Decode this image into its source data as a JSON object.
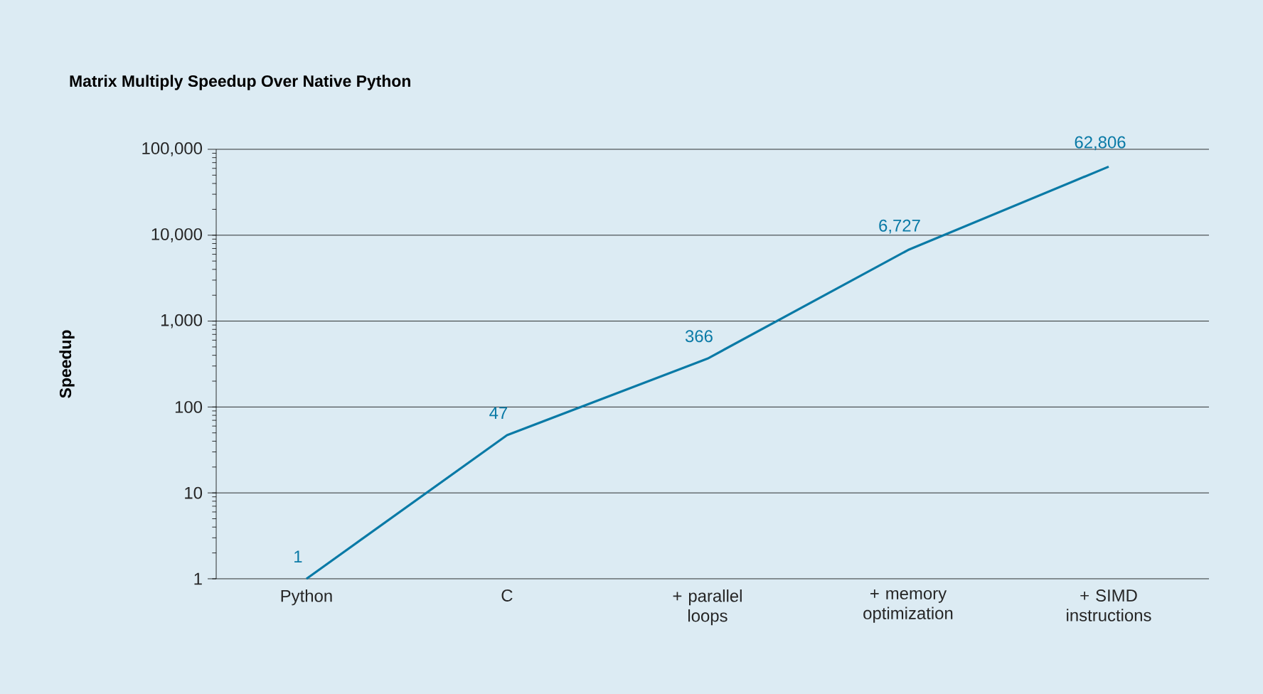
{
  "chart_data": {
    "type": "line",
    "title": "Matrix Multiply Speedup Over Native Python",
    "ylabel": "Speedup",
    "categories": [
      "Python",
      "C",
      "+ parallel loops",
      "+ memory optimization",
      "+ SIMD instructions"
    ],
    "values": [
      1,
      47,
      366,
      6727,
      62806
    ],
    "value_labels": [
      "1",
      "47",
      "366",
      "6,727",
      "62,806"
    ],
    "color": "#0a7aa6",
    "log": "y",
    "grid": "y",
    "marker": "none",
    "ylim": [
      1,
      100000
    ],
    "yticks": [
      1,
      10,
      100,
      {
        "value": 1000,
        "label": "1,000"
      },
      {
        "value": 10000,
        "label": "10,000"
      },
      {
        "value": 100000,
        "label": "100,000"
      }
    ]
  }
}
